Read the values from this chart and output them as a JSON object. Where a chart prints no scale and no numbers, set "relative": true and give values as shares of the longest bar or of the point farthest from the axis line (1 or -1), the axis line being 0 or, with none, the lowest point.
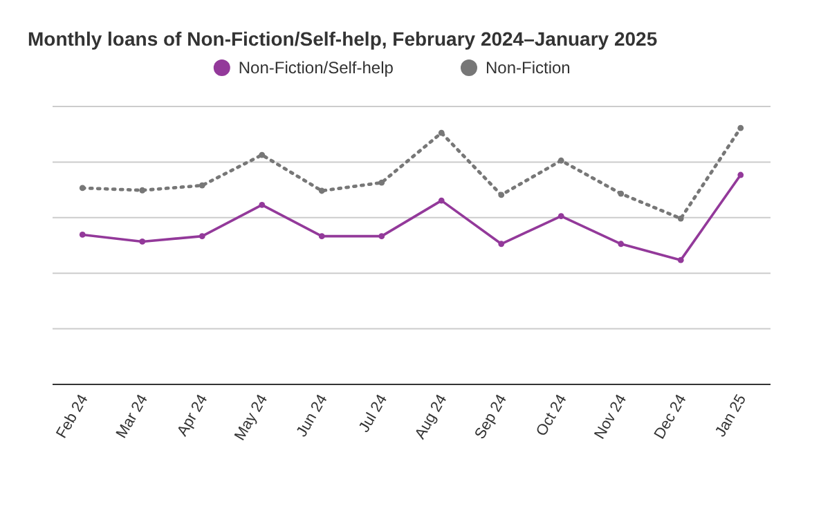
{
  "chart_data": {
    "type": "line",
    "title": "Monthly loans of Non-Fiction/Self-help, February 2024–January 2025",
    "categories": [
      "Feb 24",
      "Mar 24",
      "Apr 24",
      "May 24",
      "Jun 24",
      "Jul 24",
      "Aug 24",
      "Sep 24",
      "Oct 24",
      "Nov 24",
      "Dec 24",
      "Jan 25"
    ],
    "relative": true,
    "grid": "y",
    "legend": "top",
    "marker": "circle",
    "series": [
      {
        "name": "Non-Fiction/Self-help",
        "color": "#93399a",
        "line_style": "solid",
        "values": [
          0.584,
          0.557,
          0.578,
          0.7,
          0.578,
          0.578,
          0.717,
          0.548,
          0.656,
          0.548,
          0.485,
          0.817
        ]
      },
      {
        "name": "Non-Fiction",
        "color": "#777777",
        "line_style": "dotted",
        "values": [
          0.766,
          0.757,
          0.776,
          0.895,
          0.755,
          0.787,
          0.981,
          0.739,
          0.873,
          0.744,
          0.647,
          1
        ]
      }
    ]
  }
}
